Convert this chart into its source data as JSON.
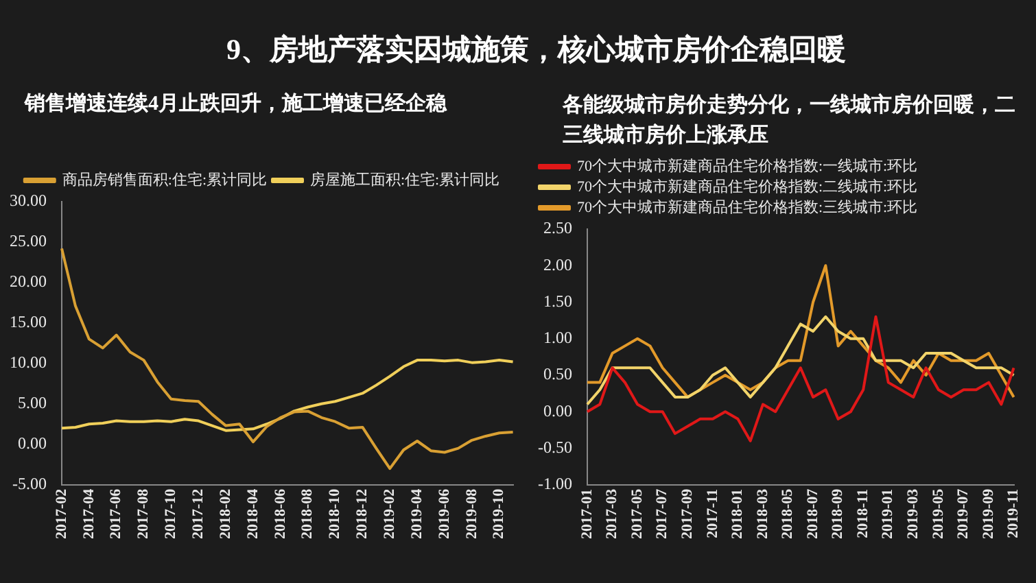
{
  "chart_data": [
    {
      "type": "line",
      "title": "9、房地产落实因城施策，核心城市房价企稳回暖",
      "subtitle": "销售增速连续4月止跌回升，施工增速已经企稳",
      "categories": [
        "2017-02",
        null,
        "2017-04",
        null,
        "2017-06",
        null,
        "2017-08",
        null,
        "2017-10",
        null,
        "2017-12",
        null,
        "2018-02",
        null,
        "2018-04",
        null,
        "2018-06",
        null,
        "2018-08",
        null,
        "2018-10",
        null,
        "2018-12",
        null,
        "2019-02",
        null,
        "2019-04",
        null,
        "2019-06",
        null,
        "2019-08",
        null,
        "2019-10",
        null
      ],
      "series": [
        {
          "name": "商品房销售面积:住宅:累计同比",
          "color": "#d9a033",
          "values": [
            24.2,
            17.1,
            13.0,
            11.9,
            13.5,
            11.4,
            10.4,
            7.7,
            5.6,
            5.4,
            5.3,
            3.7,
            2.3,
            2.5,
            0.3,
            2.2,
            3.3,
            4.0,
            4.1,
            3.3,
            2.8,
            2.0,
            2.1,
            -0.5,
            -3.0,
            -0.7,
            0.4,
            -0.8,
            -1.0,
            -0.5,
            0.5,
            1.0,
            1.4,
            1.5
          ]
        },
        {
          "name": "房屋施工面积:住宅:累计同比",
          "color": "#f0cf5a",
          "values": [
            2.0,
            2.1,
            2.5,
            2.6,
            2.9,
            2.8,
            2.8,
            2.9,
            2.8,
            3.1,
            2.9,
            2.3,
            1.7,
            1.8,
            1.9,
            2.5,
            3.2,
            4.1,
            4.6,
            5.0,
            5.3,
            5.8,
            6.3,
            7.3,
            8.4,
            9.6,
            10.4,
            10.4,
            10.3,
            10.4,
            10.1,
            10.2,
            10.4,
            10.2
          ]
        }
      ],
      "ylim": [
        -5,
        30
      ],
      "yticks": [
        {
          "value": -5,
          "label": "-5.00"
        },
        {
          "value": 0,
          "label": "0.00"
        },
        {
          "value": 5,
          "label": "5.00"
        },
        {
          "value": 10,
          "label": "10.00"
        },
        {
          "value": 15,
          "label": "15.00"
        },
        {
          "value": 20,
          "label": "20.00"
        },
        {
          "value": 25,
          "label": "25.00"
        },
        {
          "value": 30,
          "label": "30.00"
        }
      ],
      "grid": false,
      "legend": "top"
    },
    {
      "type": "line",
      "title": "各能级城市房价走势分化，一线城市房价回暖，二三线城市房价上涨承压",
      "categories": [
        "2017-01",
        null,
        "2017-03",
        null,
        "2017-05",
        null,
        "2017-07",
        null,
        "2017-09",
        null,
        "2017-11",
        null,
        "2018-01",
        null,
        "2018-03",
        null,
        "2018-05",
        null,
        "2018-07",
        null,
        "2018-09",
        null,
        "2018-11",
        null,
        "2019-01",
        null,
        "2019-03",
        null,
        "2019-05",
        null,
        "2019-07",
        null,
        "2019-09",
        null,
        "2019-11"
      ],
      "series": [
        {
          "name": "70个大中城市新建商品住宅价格指数:一线城市:环比",
          "color": "#e01818",
          "values": [
            0.0,
            0.1,
            0.6,
            0.4,
            0.1,
            0.0,
            0.0,
            -0.3,
            -0.2,
            -0.1,
            -0.1,
            0.0,
            -0.1,
            -0.4,
            0.1,
            0.0,
            0.3,
            0.6,
            0.2,
            0.3,
            -0.1,
            0.0,
            0.3,
            1.3,
            0.4,
            0.3,
            0.2,
            0.6,
            0.3,
            0.2,
            0.3,
            0.3,
            0.4,
            0.1,
            0.6
          ]
        },
        {
          "name": "70个大中城市新建商品住宅价格指数:二线城市:环比",
          "color": "#f2d46a",
          "values": [
            0.1,
            0.3,
            0.6,
            0.6,
            0.6,
            0.6,
            0.4,
            0.2,
            0.2,
            0.3,
            0.5,
            0.6,
            0.4,
            0.2,
            0.4,
            0.6,
            0.9,
            1.2,
            1.1,
            1.3,
            1.1,
            1.0,
            1.0,
            0.7,
            0.7,
            0.7,
            0.6,
            0.8,
            0.8,
            0.8,
            0.7,
            0.6,
            0.6,
            0.6,
            0.5
          ]
        },
        {
          "name": "70个大中城市新建商品住宅价格指数:三线城市:环比",
          "color": "#e39a2a",
          "values": [
            0.4,
            0.4,
            0.8,
            0.9,
            1.0,
            0.9,
            0.6,
            0.4,
            0.2,
            0.3,
            0.4,
            0.5,
            0.4,
            0.3,
            0.4,
            0.6,
            0.7,
            0.7,
            1.5,
            2.0,
            0.9,
            1.1,
            0.9,
            0.7,
            0.6,
            0.4,
            0.7,
            0.5,
            0.8,
            0.7,
            0.7,
            0.7,
            0.8,
            0.5,
            0.2
          ]
        }
      ],
      "ylim": [
        -1,
        2.5
      ],
      "yticks": [
        {
          "value": -1,
          "label": "-1.00"
        },
        {
          "value": -0.5,
          "label": "-0.50"
        },
        {
          "value": 0,
          "label": "0.00"
        },
        {
          "value": 0.5,
          "label": "0.50"
        },
        {
          "value": 1,
          "label": "1.00"
        },
        {
          "value": 1.5,
          "label": "1.50"
        },
        {
          "value": 2,
          "label": "2.00"
        },
        {
          "value": 2.5,
          "label": "2.50"
        }
      ],
      "grid": false,
      "legend": "top left"
    }
  ]
}
